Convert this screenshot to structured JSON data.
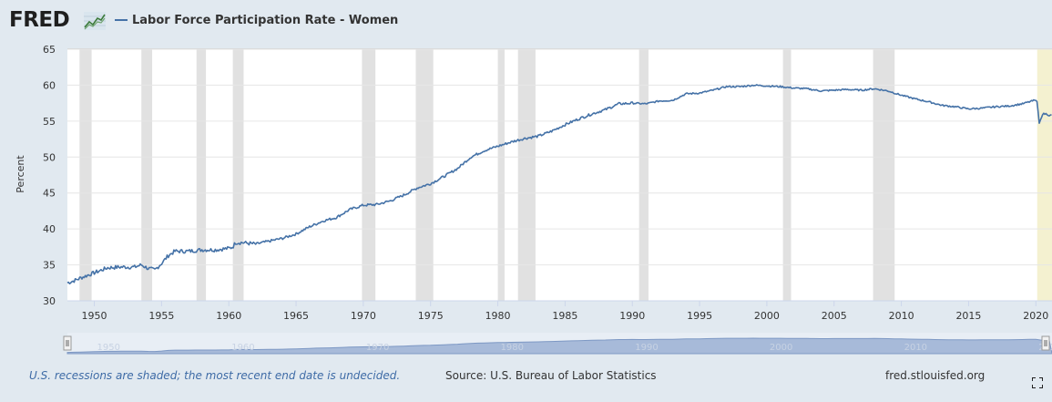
{
  "header": {
    "logo_text": "FRED",
    "legend_label": "Labor Force Participation Rate - Women"
  },
  "footer": {
    "recession_note": "U.S. recessions are shaded; the most recent end date is undecided.",
    "source": "Source: U.S. Bureau of Labor Statistics",
    "site": "fred.stlouisfed.org"
  },
  "icons": {
    "logo_graph": "chart-line-icon",
    "fullscreen": "fullscreen-icon"
  },
  "colors": {
    "series": "#4572a7",
    "recession": "#e1e1e1",
    "undecided_recession": "#f4f1d0",
    "background": "#e1e9f0",
    "plot_background": "#ffffff",
    "navigator": "#a7bad9"
  },
  "chart_data": {
    "type": "line",
    "title": "",
    "xlabel": "",
    "ylabel": "Percent",
    "xlim": [
      1948.0,
      2021.2
    ],
    "ylim": [
      30,
      65
    ],
    "y_ticks": [
      30,
      35,
      40,
      45,
      50,
      55,
      60,
      65
    ],
    "x_ticks": [
      1950,
      1955,
      1960,
      1965,
      1970,
      1975,
      1980,
      1985,
      1990,
      1995,
      2000,
      2005,
      2010,
      2015,
      2020
    ],
    "grid": true,
    "legend": "top-left",
    "recessions": [
      [
        1948.9,
        1949.8
      ],
      [
        1953.5,
        1954.3
      ],
      [
        1957.6,
        1958.3
      ],
      [
        1960.3,
        1961.1
      ],
      [
        1969.9,
        1970.9
      ],
      [
        1973.9,
        1975.2
      ],
      [
        1980.0,
        1980.5
      ],
      [
        1981.5,
        1982.8
      ],
      [
        1990.5,
        1991.2
      ],
      [
        2001.2,
        2001.8
      ],
      [
        2007.9,
        2009.5
      ]
    ],
    "undecided_recession": [
      2020.1,
      2021.2
    ],
    "navigator_ticks": [
      1950,
      1960,
      1970,
      1980,
      1990,
      2000,
      2010,
      2020
    ],
    "series": [
      {
        "name": "Labor Force Participation Rate - Women",
        "x": [
          1948.0,
          1948.5,
          1949.0,
          1950.0,
          1951.0,
          1952.0,
          1953.0,
          1953.5,
          1954.0,
          1954.5,
          1955.0,
          1955.5,
          1956.0,
          1957.0,
          1958.0,
          1959.0,
          1960.0,
          1960.3,
          1960.5,
          1961.0,
          1962.0,
          1963.0,
          1964.0,
          1965.0,
          1966.0,
          1967.0,
          1968.0,
          1969.0,
          1970.0,
          1971.0,
          1972.0,
          1973.0,
          1974.0,
          1975.0,
          1976.0,
          1977.0,
          1978.0,
          1979.0,
          1980.0,
          1981.0,
          1982.0,
          1983.0,
          1984.0,
          1985.0,
          1986.0,
          1987.0,
          1988.0,
          1989.0,
          1990.0,
          1991.0,
          1992.0,
          1993.0,
          1994.0,
          1995.0,
          1996.0,
          1997.0,
          1998.0,
          1999.0,
          2000.0,
          2001.0,
          2002.0,
          2003.0,
          2004.0,
          2005.0,
          2006.0,
          2007.0,
          2008.0,
          2009.0,
          2010.0,
          2011.0,
          2012.0,
          2013.0,
          2014.0,
          2015.0,
          2016.0,
          2017.0,
          2018.0,
          2019.0,
          2019.9,
          2020.1,
          2020.25,
          2020.5,
          2020.8,
          2021.0,
          2021.2
        ],
        "values": [
          32.5,
          32.8,
          33.2,
          33.9,
          34.6,
          34.7,
          34.7,
          35.0,
          34.5,
          34.3,
          35.2,
          36.3,
          36.9,
          36.9,
          37.1,
          37.1,
          37.3,
          37.5,
          38.1,
          38.1,
          37.9,
          38.3,
          38.7,
          39.3,
          40.3,
          41.1,
          41.6,
          42.7,
          43.3,
          43.4,
          43.9,
          44.7,
          45.7,
          46.3,
          47.3,
          48.4,
          50.0,
          50.9,
          51.5,
          52.1,
          52.6,
          52.9,
          53.6,
          54.5,
          55.3,
          56.0,
          56.6,
          57.4,
          57.5,
          57.4,
          57.8,
          57.9,
          58.8,
          58.9,
          59.3,
          59.8,
          59.8,
          60.0,
          59.9,
          59.8,
          59.6,
          59.5,
          59.2,
          59.3,
          59.4,
          59.3,
          59.5,
          59.2,
          58.6,
          58.1,
          57.7,
          57.2,
          57.0,
          56.7,
          56.8,
          57.0,
          57.1,
          57.4,
          57.9,
          57.7,
          54.7,
          56.0,
          56.0,
          55.8,
          55.8
        ]
      }
    ]
  }
}
